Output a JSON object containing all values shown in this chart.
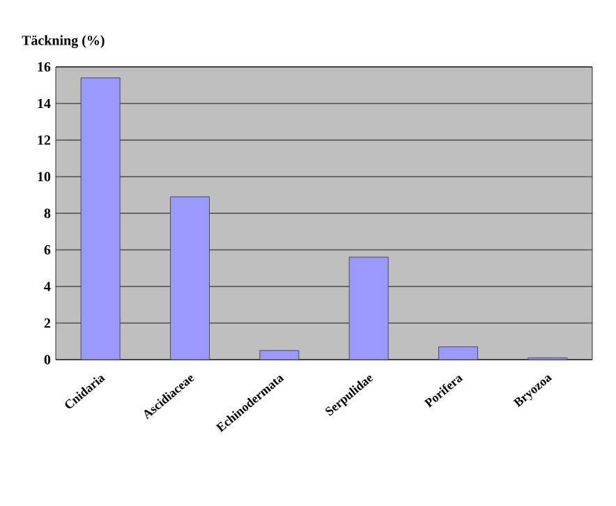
{
  "chart_data": {
    "type": "bar",
    "ylabel": "Täckning (%)",
    "categories": [
      "Cnidaria",
      "Ascidiaceae",
      "Echinodermata",
      "Serpulidae",
      "Porifera",
      "Bryozoa"
    ],
    "values": [
      15.4,
      8.9,
      0.5,
      5.6,
      0.7,
      0.1
    ],
    "color": "#9999ff",
    "ylim": [
      0,
      16
    ],
    "yticks": [
      0,
      2,
      4,
      6,
      8,
      10,
      12,
      14,
      16
    ],
    "grid": "y"
  }
}
